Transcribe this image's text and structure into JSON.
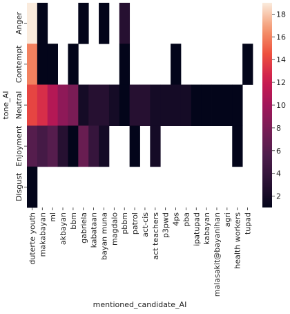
{
  "chart_data": {
    "type": "heatmap",
    "title": "",
    "xlabel": "mentioned_candidate_AI",
    "ylabel": "tone_AI",
    "x_categories": [
      "duterte youth",
      "makabayan",
      "ml",
      "akbayan",
      "bbm",
      "gabriela",
      "kabataan",
      "bayan muna",
      "magdalo",
      "pbbm",
      "patrol",
      "act-cis",
      "act teachers",
      "p3pwd",
      "4ps",
      "pba",
      "ipatupad",
      "kabayan",
      "malasakit@bayanihan",
      "agri",
      "health workers",
      "tupad"
    ],
    "y_categories": [
      "Anger",
      "Contempt",
      "Neutral",
      "Enjoyment",
      "Disgust"
    ],
    "values": [
      [
        19,
        1,
        null,
        null,
        null,
        1,
        null,
        1,
        null,
        3,
        null,
        null,
        null,
        null,
        null,
        null,
        null,
        null,
        null,
        null,
        null,
        null
      ],
      [
        16,
        1,
        1,
        null,
        1,
        null,
        null,
        null,
        null,
        1,
        null,
        null,
        null,
        null,
        1,
        null,
        null,
        null,
        null,
        null,
        null,
        1
      ],
      [
        14,
        13,
        11,
        9,
        8,
        2,
        3,
        3,
        2,
        1,
        3,
        3,
        2,
        2,
        2,
        2,
        1,
        1,
        1,
        1,
        1,
        null
      ],
      [
        6,
        5,
        6,
        3,
        1,
        7,
        4,
        2,
        null,
        null,
        1,
        null,
        2,
        null,
        null,
        null,
        null,
        null,
        null,
        null,
        1,
        null
      ],
      [
        1,
        null,
        null,
        null,
        null,
        null,
        null,
        null,
        null,
        null,
        null,
        null,
        null,
        null,
        null,
        null,
        null,
        null,
        null,
        null,
        null,
        null
      ]
    ],
    "colorbar": {
      "vmin": 1,
      "vmax": 19,
      "ticks": [
        2,
        4,
        6,
        8,
        10,
        12,
        14,
        16,
        18
      ],
      "colormap": "rocket"
    },
    "missing_color": "#ffffff",
    "grid": false,
    "legend": "colorbar-right"
  }
}
